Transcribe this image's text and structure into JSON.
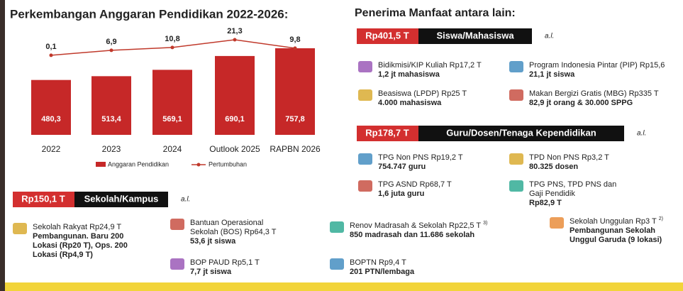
{
  "chart_data": {
    "type": "bar",
    "title": "Perkembangan Anggaran Pendidikan 2022-2026:",
    "categories": [
      "2022",
      "2023",
      "2024",
      "Outlook 2025",
      "RAPBN 2026"
    ],
    "series": [
      {
        "name": "Anggaran Pendidikan",
        "type": "bar",
        "color": "#c62828",
        "values": [
          480.3,
          513.4,
          569.1,
          690.1,
          757.8
        ],
        "value_labels": [
          "480,3",
          "513,4",
          "569,1",
          "690,1",
          "757,8"
        ]
      },
      {
        "name": "Pertumbuhan",
        "type": "line",
        "color": "#c0392b",
        "values": [
          0.1,
          6.9,
          10.8,
          21.3,
          9.8
        ],
        "value_labels": [
          "0,1",
          "6,9",
          "10,8",
          "21,3",
          "9,8"
        ]
      }
    ]
  },
  "heading": "Penerima Manfaat antara lain:",
  "sections": [
    {
      "amount": "Rp401,5 T",
      "label": "Siswa/Mahasiswa",
      "al": "a.l.",
      "items": [
        {
          "title": [
            "Bidikmisi/KIP Kuliah Rp17,2 T"
          ],
          "detail": [
            "1,2 jt mahasiswa"
          ]
        },
        {
          "title": [
            "Program Indonesia Pintar (PIP) Rp15,6"
          ],
          "detail": [
            "21,1 jt siswa"
          ]
        },
        {
          "title": [
            "Beasiswa (LPDP) Rp25 T"
          ],
          "detail": [
            "4.000 mahasiswa"
          ]
        },
        {
          "title": [
            "Makan Bergizi Gratis (MBG) Rp335 T"
          ],
          "detail": [
            "82,9  jt orang & 30.000 SPPG"
          ]
        }
      ]
    },
    {
      "amount": "Rp178,7 T",
      "label": "Guru/Dosen/Tenaga Kependidikan",
      "al": "a.l.",
      "items": [
        {
          "title": [
            "TPG Non PNS Rp19,2 T"
          ],
          "detail": [
            "754.747 guru"
          ]
        },
        {
          "title": [
            "TPD Non PNS Rp3,2 T"
          ],
          "detail": [
            "80.325 dosen"
          ]
        },
        {
          "title": [
            "TPG ASND Rp68,7 T"
          ],
          "detail": [
            "1,6 juta guru"
          ]
        },
        {
          "title": [
            "TPG PNS, TPD PNS dan",
            "Gaji Pendidik"
          ],
          "detail": [
            "Rp82,9 T"
          ]
        }
      ]
    },
    {
      "amount": "Rp150,1 T",
      "label": "Sekolah/Kampus",
      "al": "a.l.",
      "items": [
        {
          "title": [
            "Sekolah Rakyat Rp24,9 T"
          ],
          "detail": [
            "Pembangunan. Baru 200",
            "Lokasi (Rp20 T), Ops. 200",
            "Lokasi (Rp4,9 T)"
          ]
        },
        {
          "title": [
            "Bantuan Operasional",
            "Sekolah (BOS) Rp64,3 T"
          ],
          "detail": [
            "53,6 jt siswa"
          ]
        },
        {
          "title": [
            "Renov Madrasah & Sekolah Rp22,5 T"
          ],
          "note": "3)",
          "detail": [
            "850 madrasah dan 11.686 sekolah"
          ]
        },
        {
          "title": [
            "Sekolah Unggulan Rp3 T"
          ],
          "note": "2)",
          "detail": [
            "Pembangunan Sekolah",
            "Unggul Garuda (9 lokasi)"
          ]
        },
        {
          "title": [
            "BOP PAUD Rp5,1 T"
          ],
          "detail": [
            "7,7 jt siswa"
          ]
        },
        {
          "title": [
            "BOPTN Rp9,4 T"
          ],
          "detail": [
            "201 PTN/lembaga"
          ]
        }
      ]
    }
  ]
}
